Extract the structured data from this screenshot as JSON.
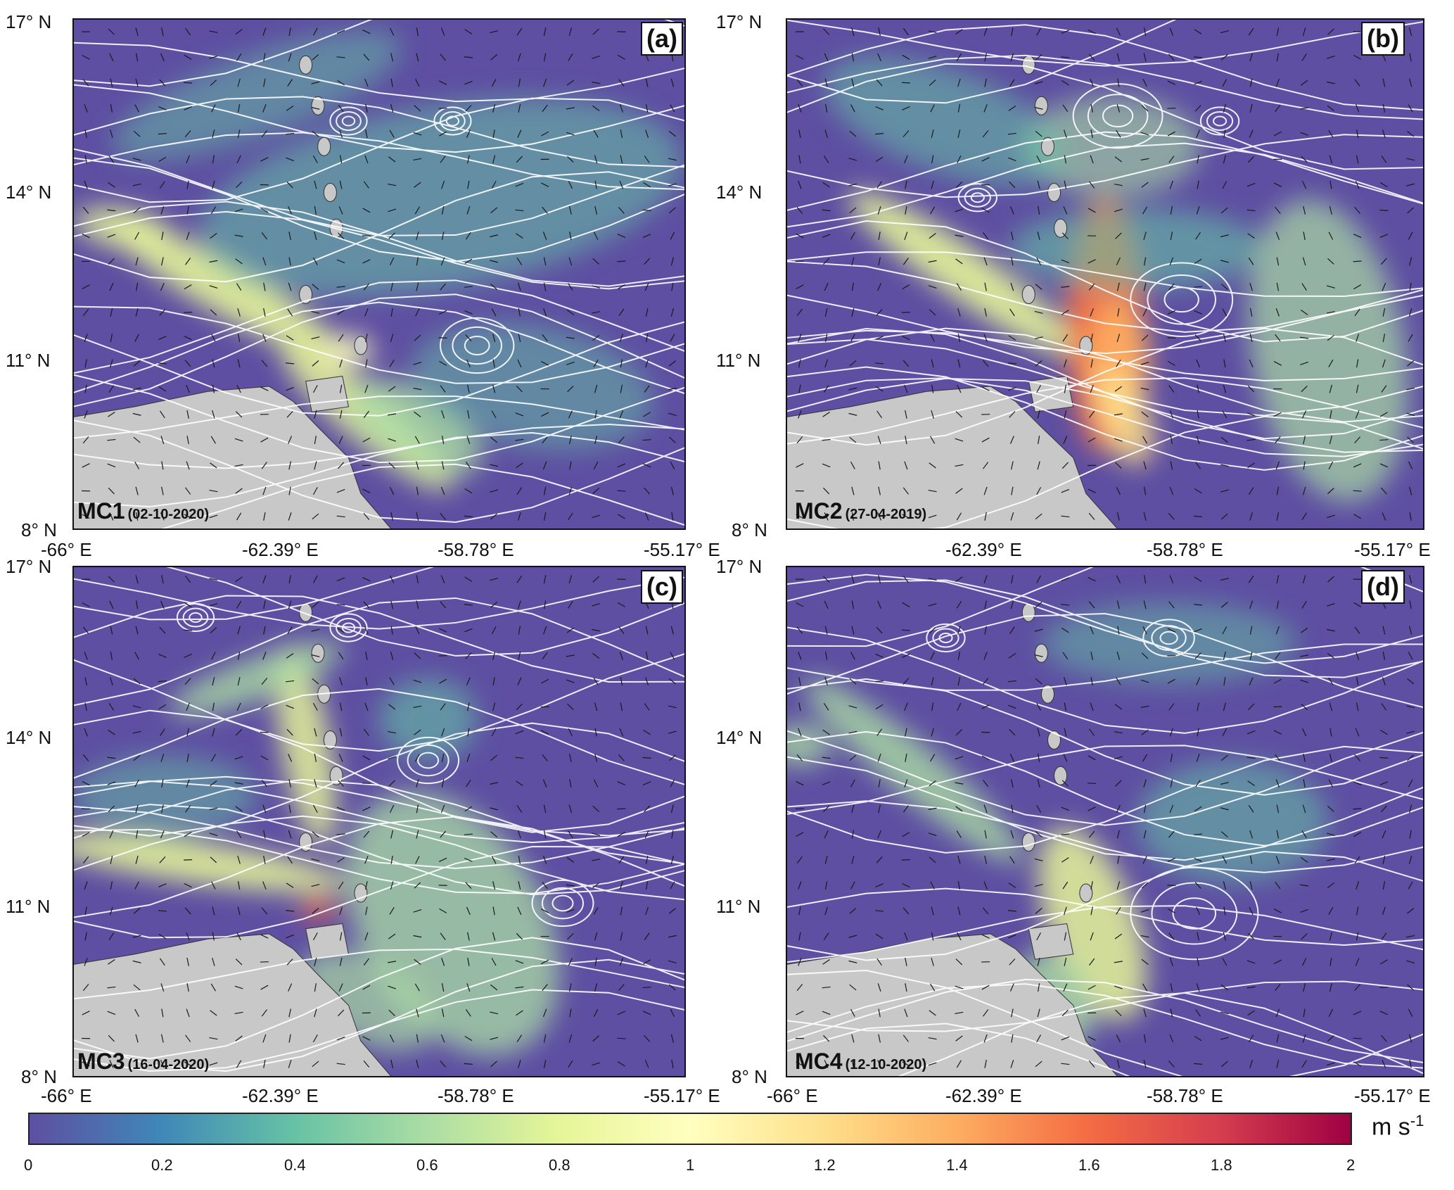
{
  "panels": [
    {
      "tag": "(a)",
      "code": "MC1",
      "date": "(02-10-2020)"
    },
    {
      "tag": "(b)",
      "code": "MC2",
      "date": "(27-04-2019)"
    },
    {
      "tag": "(c)",
      "code": "MC3",
      "date": "(16-04-2020)"
    },
    {
      "tag": "(d)",
      "code": "MC4",
      "date": "(12-10-2020)"
    }
  ],
  "axes": {
    "lat_ticks": [
      "17° N",
      "14° N",
      "11° N",
      "8° N"
    ],
    "lon_ticks": [
      "-66° E",
      "-62.39° E",
      "-58.78° E",
      "-55.17° E"
    ],
    "lon_range": [
      -66,
      -55.17
    ],
    "lat_range": [
      8,
      17
    ]
  },
  "colorbar": {
    "ticks": [
      "0",
      "0.2",
      "0.4",
      "0.6",
      "0.8",
      "1",
      "1.2",
      "1.4",
      "1.6",
      "1.8",
      "2"
    ],
    "unit": "m s",
    "unit_exp": "-1",
    "range": [
      0,
      2
    ],
    "colors": [
      "#5e4fa2",
      "#3f88b8",
      "#66c2a5",
      "#abdda4",
      "#e6f598",
      "#ffffbf",
      "#fee08b",
      "#fdae61",
      "#f46d43",
      "#d53e4f",
      "#9e0142"
    ]
  },
  "colors": {
    "land": "#c8c8c8",
    "streamline": "#ffffff",
    "arrow": "#1a1a1a"
  }
}
